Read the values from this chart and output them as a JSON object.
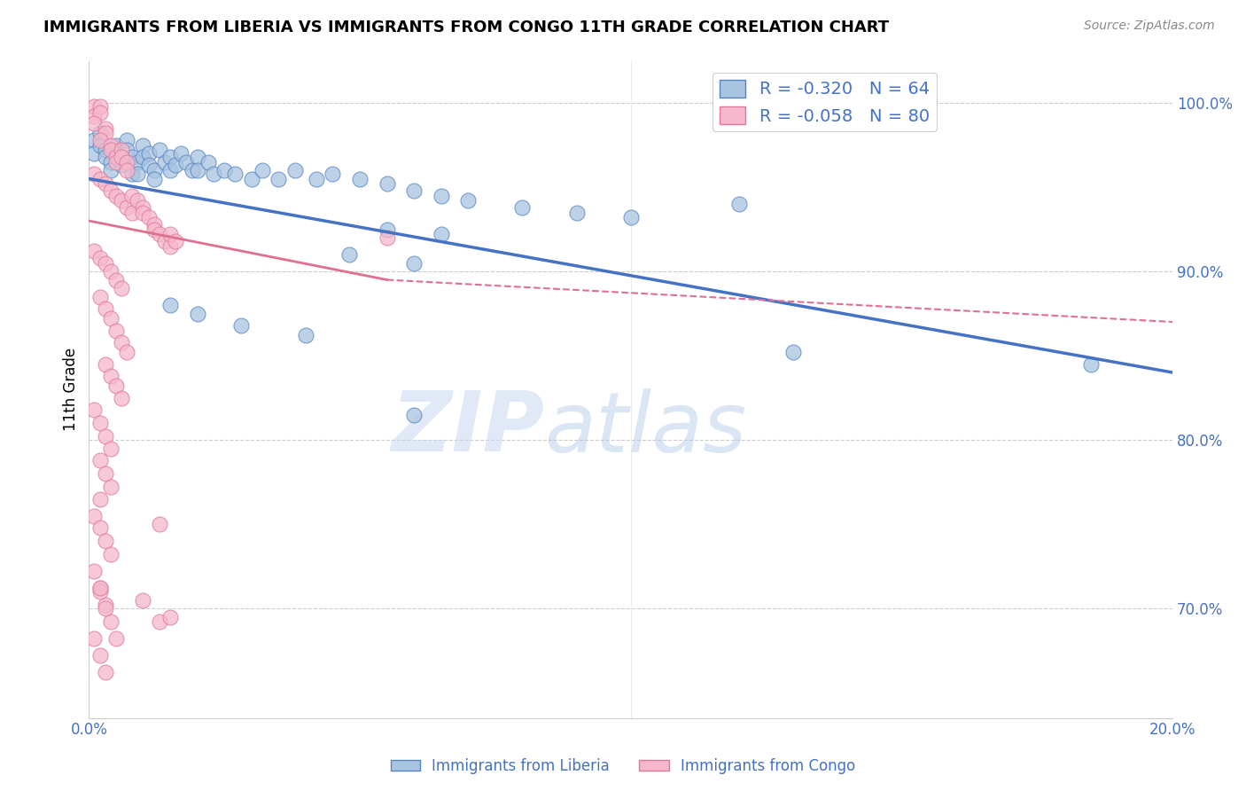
{
  "title": "IMMIGRANTS FROM LIBERIA VS IMMIGRANTS FROM CONGO 11TH GRADE CORRELATION CHART",
  "source": "Source: ZipAtlas.com",
  "ylabel": "11th Grade",
  "ylabel_right_ticks": [
    "100.0%",
    "90.0%",
    "80.0%",
    "70.0%"
  ],
  "ylabel_right_vals": [
    1.0,
    0.9,
    0.8,
    0.7
  ],
  "legend_blue_R": "R = -0.320",
  "legend_blue_N": "N = 64",
  "legend_pink_R": "R = -0.058",
  "legend_pink_N": "N = 80",
  "legend_label_blue": "Immigrants from Liberia",
  "legend_label_pink": "Immigrants from Congo",
  "blue_color": "#a8c4e0",
  "pink_color": "#f5b8cc",
  "blue_edge_color": "#5585c5",
  "pink_edge_color": "#e07898",
  "blue_line_color": "#4472c4",
  "pink_line_color": "#e07090",
  "text_color": "#4472c4",
  "watermark_zip": "ZIP",
  "watermark_atlas": "atlas",
  "xlim": [
    0.0,
    0.2
  ],
  "ylim": [
    0.635,
    1.025
  ],
  "blue_scatter": [
    [
      0.001,
      0.978
    ],
    [
      0.001,
      0.97
    ],
    [
      0.002,
      0.982
    ],
    [
      0.002,
      0.975
    ],
    [
      0.003,
      0.972
    ],
    [
      0.003,
      0.968
    ],
    [
      0.004,
      0.965
    ],
    [
      0.004,
      0.96
    ],
    [
      0.005,
      0.975
    ],
    [
      0.005,
      0.97
    ],
    [
      0.006,
      0.968
    ],
    [
      0.006,
      0.963
    ],
    [
      0.007,
      0.978
    ],
    [
      0.007,
      0.972
    ],
    [
      0.008,
      0.968
    ],
    [
      0.008,
      0.958
    ],
    [
      0.009,
      0.965
    ],
    [
      0.009,
      0.958
    ],
    [
      0.01,
      0.975
    ],
    [
      0.01,
      0.968
    ],
    [
      0.011,
      0.97
    ],
    [
      0.011,
      0.963
    ],
    [
      0.012,
      0.96
    ],
    [
      0.012,
      0.955
    ],
    [
      0.013,
      0.972
    ],
    [
      0.014,
      0.965
    ],
    [
      0.015,
      0.968
    ],
    [
      0.015,
      0.96
    ],
    [
      0.016,
      0.963
    ],
    [
      0.017,
      0.97
    ],
    [
      0.018,
      0.965
    ],
    [
      0.019,
      0.96
    ],
    [
      0.02,
      0.968
    ],
    [
      0.02,
      0.96
    ],
    [
      0.022,
      0.965
    ],
    [
      0.023,
      0.958
    ],
    [
      0.025,
      0.96
    ],
    [
      0.027,
      0.958
    ],
    [
      0.03,
      0.955
    ],
    [
      0.032,
      0.96
    ],
    [
      0.035,
      0.955
    ],
    [
      0.038,
      0.96
    ],
    [
      0.042,
      0.955
    ],
    [
      0.045,
      0.958
    ],
    [
      0.05,
      0.955
    ],
    [
      0.055,
      0.952
    ],
    [
      0.06,
      0.948
    ],
    [
      0.065,
      0.945
    ],
    [
      0.07,
      0.942
    ],
    [
      0.08,
      0.938
    ],
    [
      0.09,
      0.935
    ],
    [
      0.1,
      0.932
    ],
    [
      0.055,
      0.925
    ],
    [
      0.065,
      0.922
    ],
    [
      0.048,
      0.91
    ],
    [
      0.06,
      0.905
    ],
    [
      0.015,
      0.88
    ],
    [
      0.02,
      0.875
    ],
    [
      0.028,
      0.868
    ],
    [
      0.04,
      0.862
    ],
    [
      0.12,
      0.94
    ],
    [
      0.06,
      0.815
    ],
    [
      0.13,
      0.852
    ],
    [
      0.185,
      0.845
    ]
  ],
  "pink_scatter": [
    [
      0.001,
      0.998
    ],
    [
      0.001,
      0.992
    ],
    [
      0.002,
      0.998
    ],
    [
      0.002,
      0.994
    ],
    [
      0.001,
      0.988
    ],
    [
      0.003,
      0.985
    ],
    [
      0.003,
      0.982
    ],
    [
      0.002,
      0.978
    ],
    [
      0.004,
      0.975
    ],
    [
      0.004,
      0.972
    ],
    [
      0.005,
      0.968
    ],
    [
      0.005,
      0.965
    ],
    [
      0.006,
      0.972
    ],
    [
      0.006,
      0.968
    ],
    [
      0.007,
      0.965
    ],
    [
      0.007,
      0.96
    ],
    [
      0.001,
      0.958
    ],
    [
      0.002,
      0.955
    ],
    [
      0.003,
      0.952
    ],
    [
      0.004,
      0.948
    ],
    [
      0.005,
      0.945
    ],
    [
      0.006,
      0.942
    ],
    [
      0.007,
      0.938
    ],
    [
      0.008,
      0.935
    ],
    [
      0.008,
      0.945
    ],
    [
      0.009,
      0.942
    ],
    [
      0.01,
      0.938
    ],
    [
      0.01,
      0.935
    ],
    [
      0.011,
      0.932
    ],
    [
      0.012,
      0.928
    ],
    [
      0.012,
      0.925
    ],
    [
      0.013,
      0.922
    ],
    [
      0.014,
      0.918
    ],
    [
      0.015,
      0.915
    ],
    [
      0.015,
      0.922
    ],
    [
      0.016,
      0.918
    ],
    [
      0.001,
      0.912
    ],
    [
      0.002,
      0.908
    ],
    [
      0.003,
      0.905
    ],
    [
      0.004,
      0.9
    ],
    [
      0.005,
      0.895
    ],
    [
      0.006,
      0.89
    ],
    [
      0.002,
      0.885
    ],
    [
      0.003,
      0.878
    ],
    [
      0.004,
      0.872
    ],
    [
      0.005,
      0.865
    ],
    [
      0.006,
      0.858
    ],
    [
      0.007,
      0.852
    ],
    [
      0.003,
      0.845
    ],
    [
      0.004,
      0.838
    ],
    [
      0.005,
      0.832
    ],
    [
      0.006,
      0.825
    ],
    [
      0.001,
      0.818
    ],
    [
      0.002,
      0.81
    ],
    [
      0.003,
      0.802
    ],
    [
      0.004,
      0.795
    ],
    [
      0.002,
      0.788
    ],
    [
      0.003,
      0.78
    ],
    [
      0.004,
      0.772
    ],
    [
      0.002,
      0.765
    ],
    [
      0.001,
      0.755
    ],
    [
      0.002,
      0.748
    ],
    [
      0.003,
      0.74
    ],
    [
      0.004,
      0.732
    ],
    [
      0.001,
      0.722
    ],
    [
      0.002,
      0.712
    ],
    [
      0.003,
      0.702
    ],
    [
      0.004,
      0.692
    ],
    [
      0.055,
      0.92
    ],
    [
      0.005,
      0.682
    ],
    [
      0.002,
      0.672
    ],
    [
      0.003,
      0.662
    ],
    [
      0.013,
      0.75
    ],
    [
      0.002,
      0.71
    ],
    [
      0.003,
      0.7
    ],
    [
      0.013,
      0.692
    ],
    [
      0.001,
      0.682
    ],
    [
      0.002,
      0.712
    ],
    [
      0.01,
      0.705
    ],
    [
      0.015,
      0.695
    ]
  ],
  "x_ticks": [
    0.0,
    0.02,
    0.04,
    0.06,
    0.08,
    0.1,
    0.12,
    0.14,
    0.16,
    0.18,
    0.2
  ]
}
